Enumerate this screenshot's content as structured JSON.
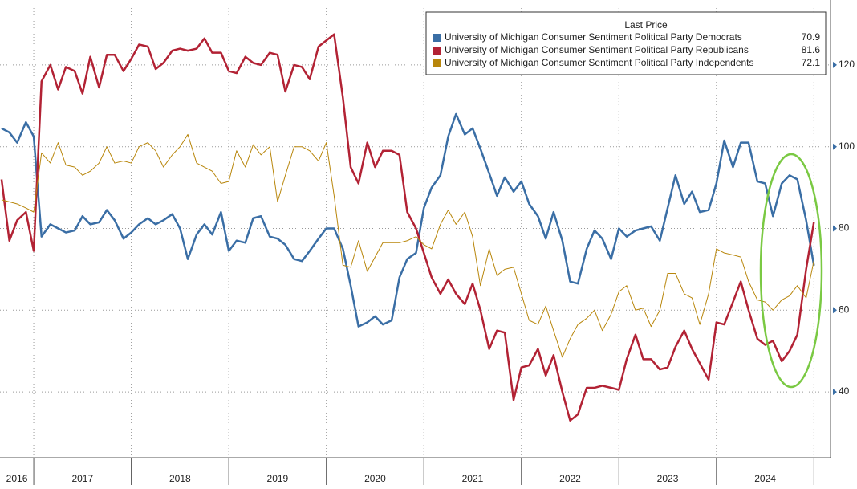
{
  "chart_data": {
    "type": "line",
    "legend_title": "Last Price",
    "x": [
      2016.67,
      2016.75,
      2016.83,
      2016.92,
      2017.0,
      2017.08,
      2017.17,
      2017.25,
      2017.33,
      2017.42,
      2017.5,
      2017.58,
      2017.67,
      2017.75,
      2017.83,
      2017.92,
      2018.0,
      2018.08,
      2018.17,
      2018.25,
      2018.33,
      2018.42,
      2018.5,
      2018.58,
      2018.67,
      2018.75,
      2018.83,
      2018.92,
      2019.0,
      2019.08,
      2019.17,
      2019.25,
      2019.33,
      2019.42,
      2019.5,
      2019.58,
      2019.67,
      2019.75,
      2019.83,
      2019.92,
      2020.0,
      2020.08,
      2020.17,
      2020.25,
      2020.33,
      2020.42,
      2020.5,
      2020.58,
      2020.67,
      2020.75,
      2020.83,
      2020.92,
      2021.0,
      2021.08,
      2021.17,
      2021.25,
      2021.33,
      2021.42,
      2021.5,
      2021.58,
      2021.67,
      2021.75,
      2021.83,
      2021.92,
      2022.0,
      2022.08,
      2022.17,
      2022.25,
      2022.33,
      2022.42,
      2022.5,
      2022.58,
      2022.67,
      2022.75,
      2022.83,
      2022.92,
      2023.0,
      2023.08,
      2023.17,
      2023.25,
      2023.33,
      2023.42,
      2023.5,
      2023.58,
      2023.67,
      2023.75,
      2023.83,
      2023.92,
      2024.0,
      2024.08,
      2024.17,
      2024.25,
      2024.33,
      2024.42,
      2024.5,
      2024.58,
      2024.67,
      2024.75,
      2024.83,
      2024.92,
      2025.0
    ],
    "series": [
      {
        "name": "University of Michigan Consumer Sentiment Political Party Democrats",
        "color": "#3a6ea5",
        "width": 2.5,
        "last_label": "70.9",
        "values": [
          104.5,
          103.5,
          101,
          106,
          102.5,
          78,
          81,
          80,
          79,
          79.5,
          83,
          81,
          81.5,
          84.5,
          82,
          77.5,
          79,
          81,
          82.5,
          81,
          82,
          83.5,
          80,
          72.5,
          78.5,
          81,
          78.5,
          84,
          74.5,
          77,
          76.5,
          82.5,
          83,
          78,
          77.5,
          76,
          72.5,
          72,
          74.5,
          77.5,
          80,
          80,
          75,
          66,
          56,
          57,
          58.5,
          56.5,
          57.5,
          68,
          72.5,
          74,
          85,
          90,
          93,
          102.5,
          108,
          103,
          104.5,
          99.5,
          93.5,
          88,
          92.5,
          89,
          91.5,
          86,
          83,
          77.5,
          84,
          77,
          67,
          66.5,
          75,
          79.5,
          77.5,
          72.5,
          80,
          78,
          79.5,
          80,
          80.5,
          77,
          85,
          93,
          86,
          89,
          84,
          84.5,
          91,
          101.5,
          95,
          101,
          101,
          91.5,
          91,
          83,
          91,
          93,
          92,
          82,
          70.9
        ]
      },
      {
        "name": "University of Michigan Consumer Sentiment Political Party Republicans",
        "color": "#b22234",
        "width": 2.5,
        "last_label": "81.6",
        "values": [
          92,
          77,
          82,
          84,
          74.5,
          116,
          120,
          114,
          119.5,
          118.5,
          113,
          122,
          114.5,
          122.5,
          122.5,
          118.5,
          121.5,
          125,
          124.5,
          119,
          120.5,
          123.5,
          124,
          123.5,
          124,
          126.5,
          123,
          123,
          118.5,
          118,
          122,
          120.5,
          120,
          123,
          122.5,
          113.5,
          120,
          119.5,
          116.5,
          124.5,
          126,
          127.5,
          112,
          95,
          91,
          101,
          95,
          99,
          99,
          98,
          84,
          80,
          74,
          68,
          64,
          67.5,
          64,
          61.5,
          66.5,
          60,
          50.5,
          55,
          54.5,
          38,
          46,
          46.5,
          50.5,
          44,
          49,
          40,
          33,
          34.5,
          41,
          41,
          41.5,
          41,
          40.5,
          48,
          54,
          48,
          48,
          45.5,
          46,
          51,
          55,
          50.5,
          47,
          43,
          57,
          56.5,
          62,
          67,
          60,
          53,
          51.5,
          52.5,
          47.5,
          50,
          54,
          70,
          81.6
        ]
      },
      {
        "name": "University of Michigan Consumer Sentiment Political Party Independents",
        "color": "#b8860b",
        "width": 1,
        "last_label": "72.1",
        "values": [
          87,
          86.5,
          86,
          85,
          84,
          98.5,
          96,
          101,
          95.5,
          95,
          93,
          94,
          96,
          100,
          96,
          96.5,
          96,
          100,
          101,
          99,
          95,
          98,
          100,
          103,
          96,
          95,
          94,
          91,
          91.5,
          99,
          95,
          100.5,
          98,
          100,
          86.5,
          93,
          100,
          100,
          99,
          96.5,
          101,
          88,
          71,
          70.5,
          77,
          69.5,
          73,
          76.5,
          76.5,
          76.5,
          77,
          78,
          76,
          75,
          81,
          84.5,
          81,
          84,
          78,
          66,
          75,
          68.5,
          70,
          70.5,
          64,
          57.5,
          56.5,
          61,
          55,
          48.5,
          53,
          56.5,
          58,
          60,
          55,
          59,
          64.5,
          66,
          60,
          60.5,
          56,
          60,
          69,
          69,
          64,
          63,
          56.5,
          64,
          75,
          74,
          73.5,
          73,
          67,
          62.5,
          62,
          60,
          62.5,
          63.5,
          66,
          63,
          72.1
        ]
      }
    ],
    "xlim": [
      2016.654,
      2025.17
    ],
    "xticks": [
      {
        "value": 2016.827,
        "label": "2016"
      },
      {
        "value": 2017.5,
        "label": "2017"
      },
      {
        "value": 2018.5,
        "label": "2018"
      },
      {
        "value": 2019.5,
        "label": "2019"
      },
      {
        "value": 2020.5,
        "label": "2020"
      },
      {
        "value": 2021.5,
        "label": "2021"
      },
      {
        "value": 2022.5,
        "label": "2022"
      },
      {
        "value": 2023.5,
        "label": "2023"
      },
      {
        "value": 2024.5,
        "label": "2024"
      }
    ],
    "xgrid": [
      2017,
      2018,
      2019,
      2020,
      2021,
      2022,
      2023,
      2024,
      2025
    ],
    "ylim": [
      23.9,
      135.9
    ],
    "yticks": [
      40,
      60,
      80,
      100,
      120
    ],
    "grid": true,
    "legend": "upper right"
  }
}
